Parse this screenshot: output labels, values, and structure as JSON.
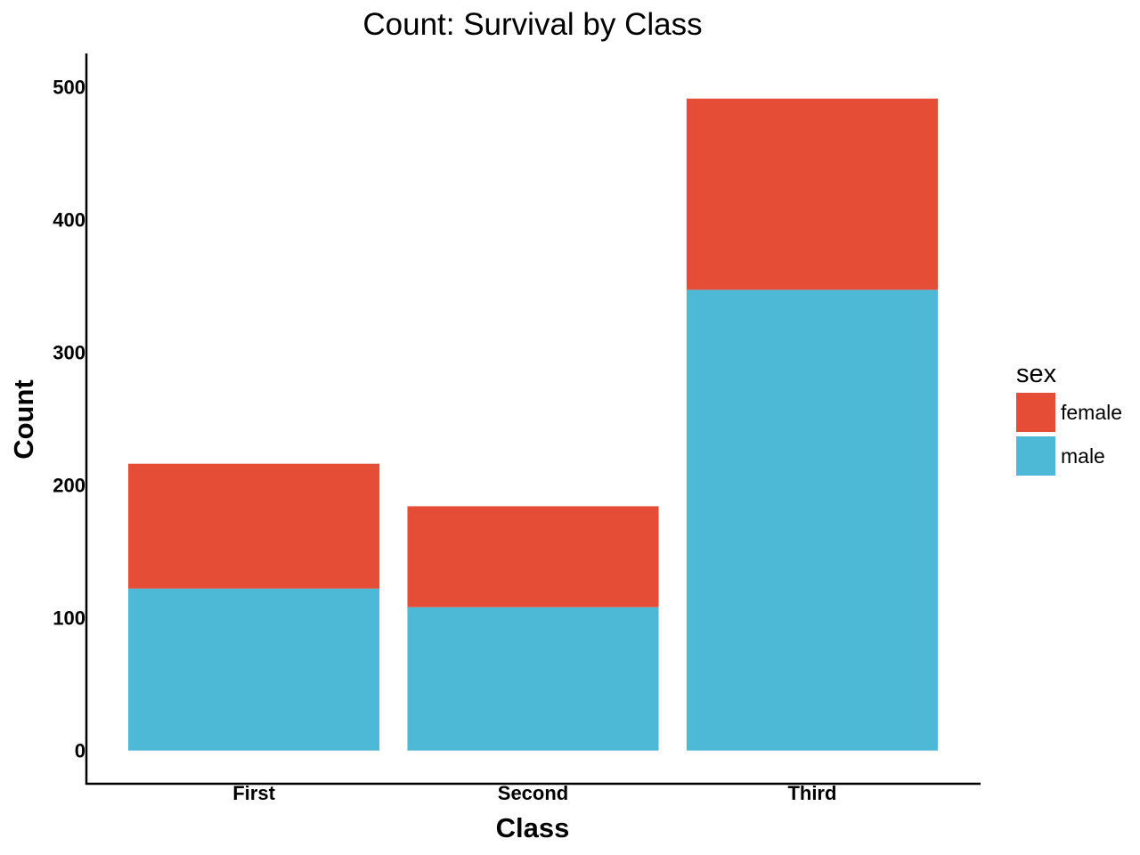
{
  "chart_data": {
    "type": "bar",
    "stacked": true,
    "title": "Count: Survival by Class",
    "xlabel": "Class",
    "ylabel": "Count",
    "categories": [
      "First",
      "Second",
      "Third"
    ],
    "series": [
      {
        "name": "male",
        "values": [
          122,
          108,
          347
        ],
        "color": "#4DB9D6"
      },
      {
        "name": "female",
        "values": [
          94,
          76,
          144
        ],
        "color": "#E64D37"
      }
    ],
    "ylim": [
      -25,
      525
    ],
    "yticks": [
      0,
      100,
      200,
      300,
      400,
      500
    ],
    "grid": false,
    "legend": {
      "title": "sex",
      "placement": "right",
      "entries": [
        "female",
        "male"
      ]
    }
  }
}
